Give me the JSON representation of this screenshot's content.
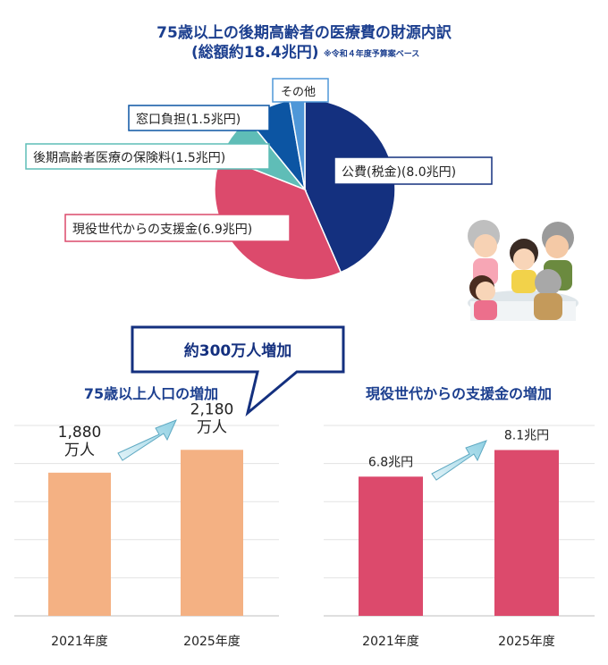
{
  "pie": {
    "title_line1": "75歳以上の後期高齢者の医療費の財源内訳",
    "title_line2": "(総額約18.4兆円)",
    "note": "※令和４年度予算案ベース",
    "chart_data": {
      "type": "pie",
      "total": 18.4,
      "unit": "兆円",
      "slices": [
        {
          "label": "公費(税金)(8.0兆円)",
          "value": 8.0,
          "color": "#14307f"
        },
        {
          "label": "現役世代からの支援金(6.9兆円)",
          "value": 6.9,
          "color": "#dc4a6c"
        },
        {
          "label": "後期高齢者医療の保険料(1.5兆円)",
          "value": 1.5,
          "color": "#5fbdb7"
        },
        {
          "label": "窓口負担(1.5兆円)",
          "value": 1.5,
          "color": "#0c55a3"
        },
        {
          "label": "その他",
          "value": 0.5,
          "color": "#4f97d8"
        }
      ]
    }
  },
  "callout": {
    "text": "約300万人増加"
  },
  "left_chart": {
    "title": "75歳以上人口の増加",
    "chart_data": {
      "type": "bar",
      "categories": [
        "2021年度",
        "2025年度"
      ],
      "values": [
        1880,
        2180
      ],
      "data_labels": [
        [
          "1,880",
          "万人"
        ],
        [
          "2,180",
          "万人"
        ]
      ],
      "color": "#f4b183",
      "ylim": [
        0,
        2500
      ]
    }
  },
  "right_chart": {
    "title": "現役世代からの支援金の増加",
    "chart_data": {
      "type": "bar",
      "categories": [
        "2021年度",
        "2025年度"
      ],
      "values": [
        6.8,
        8.1
      ],
      "data_labels": [
        "6.8兆円",
        "8.1兆円"
      ],
      "color": "#dc4a6c",
      "ylim": [
        0,
        9.3
      ]
    }
  }
}
